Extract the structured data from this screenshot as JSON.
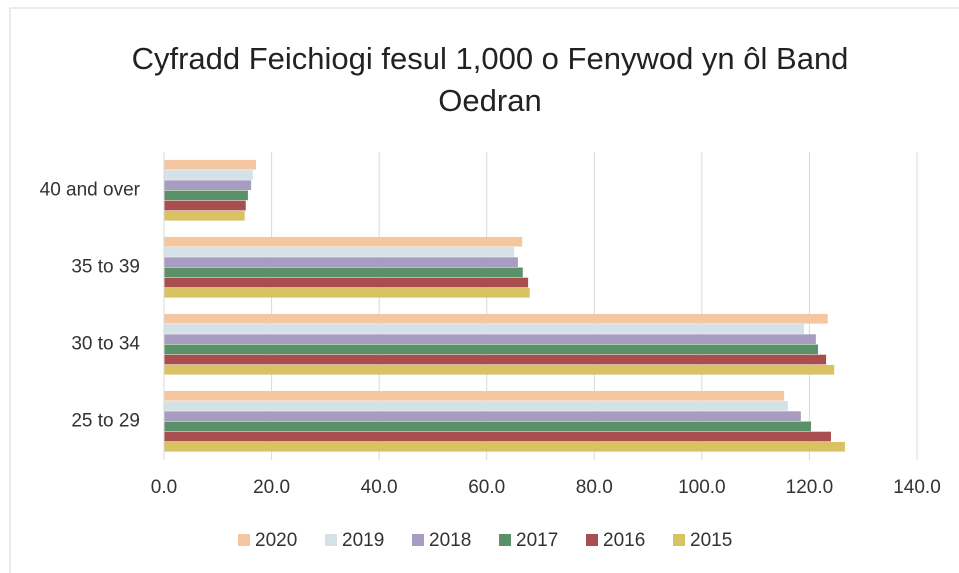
{
  "chart_data": {
    "type": "hbar",
    "title": "Cyfradd Feichiogi fesul 1,000 o Fenywod yn ôl Band Oedran",
    "categories": [
      "40 and over",
      "35 to 39",
      "30 to 34",
      "25 to 29"
    ],
    "series": [
      {
        "name": "2020",
        "color": "#f4c7a1",
        "values": [
          17.1,
          66.6,
          123.4,
          115.3
        ]
      },
      {
        "name": "2019",
        "color": "#d4e1e6",
        "values": [
          16.5,
          65.1,
          119.0,
          116.0
        ]
      },
      {
        "name": "2018",
        "color": "#a89cc0",
        "values": [
          16.2,
          65.8,
          121.2,
          118.4
        ]
      },
      {
        "name": "2017",
        "color": "#5b9168",
        "values": [
          15.6,
          66.7,
          121.6,
          120.3
        ]
      },
      {
        "name": "2016",
        "color": "#a84e4f",
        "values": [
          15.2,
          67.7,
          123.1,
          124.0
        ]
      },
      {
        "name": "2015",
        "color": "#d9c264",
        "values": [
          15.0,
          68.0,
          124.6,
          126.6
        ]
      }
    ],
    "xlim": [
      0,
      140
    ],
    "xticks": [
      {
        "value": 0,
        "label": "0.0"
      },
      {
        "value": 20,
        "label": "20.0"
      },
      {
        "value": 40,
        "label": "40.0"
      },
      {
        "value": 60,
        "label": "60.0"
      },
      {
        "value": 80,
        "label": "80.0"
      },
      {
        "value": 100,
        "label": "100.0"
      },
      {
        "value": 120,
        "label": "120.0"
      },
      {
        "value": 140,
        "label": "140.0"
      }
    ],
    "grid": true,
    "legend": "bottom"
  }
}
